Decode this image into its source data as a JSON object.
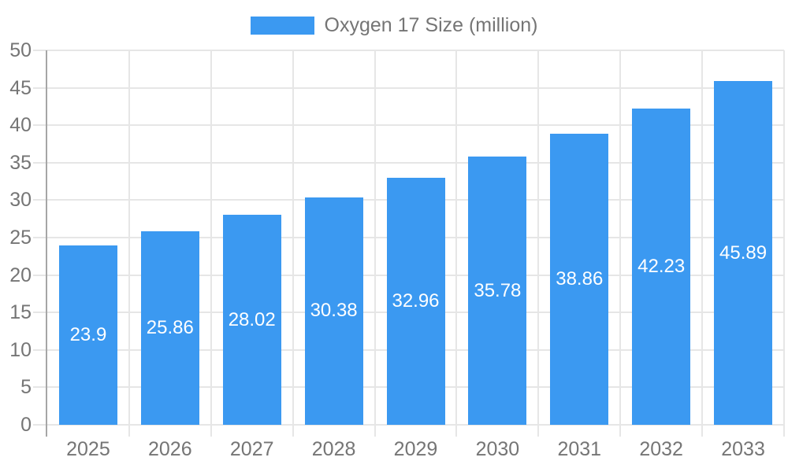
{
  "legend": {
    "label": "Oxygen 17 Size (million)"
  },
  "chart_data": {
    "type": "bar",
    "title": "Oxygen 17 Size (million)",
    "series_name": "Oxygen 17 Size (million)",
    "categories": [
      "2025",
      "2026",
      "2027",
      "2028",
      "2029",
      "2030",
      "2031",
      "2032",
      "2033"
    ],
    "values": [
      23.9,
      25.86,
      28.02,
      30.38,
      32.96,
      35.78,
      38.86,
      42.23,
      45.89
    ],
    "value_labels": [
      "23.9",
      "25.86",
      "28.02",
      "30.38",
      "32.96",
      "35.78",
      "38.86",
      "42.23",
      "45.89"
    ],
    "xlabel": "",
    "ylabel": "",
    "ylim": [
      0,
      50
    ],
    "ytick_step": 5,
    "yticks": [
      0,
      5,
      10,
      15,
      20,
      25,
      30,
      35,
      40,
      45,
      50
    ],
    "grid": true,
    "legend_position": "top-center",
    "value_label_position": "inside-center",
    "colors": {
      "bar": "#3B99F1",
      "grid": "#E6E6E6",
      "axis_line": "#A6A6A6",
      "tick_text": "#757575",
      "value_label_text": "#FFFFFF",
      "background": "#FFFFFF"
    }
  }
}
